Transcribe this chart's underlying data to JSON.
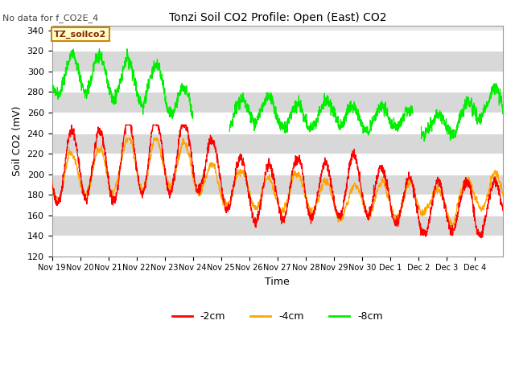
{
  "title": "Tonzi Soil CO2 Profile: Open (East) CO2",
  "subtitle": "No data for f_CO2E_4",
  "ylabel": "Soil CO2 (mV)",
  "xlabel": "Time",
  "dataset_label": "TZ_soilco2",
  "ylim": [
    120,
    345
  ],
  "yticks": [
    120,
    140,
    160,
    180,
    200,
    220,
    240,
    260,
    280,
    300,
    320,
    340
  ],
  "xtick_labels": [
    "Nov 19",
    "Nov 20",
    "Nov 21",
    "Nov 22",
    "Nov 23",
    "Nov 24",
    "Nov 25",
    "Nov 26",
    "Nov 27",
    "Nov 28",
    "Nov 29",
    "Nov 30",
    "Dec 1",
    "Dec 2",
    "Dec 3",
    "Dec 4"
  ],
  "colors": {
    "neg2cm": "#ff0000",
    "neg4cm": "#ffa500",
    "neg8cm": "#00ee00",
    "bg_plot": "#e8e8e8",
    "bg_stripe": "#d8d8d8"
  },
  "n_days": 16
}
